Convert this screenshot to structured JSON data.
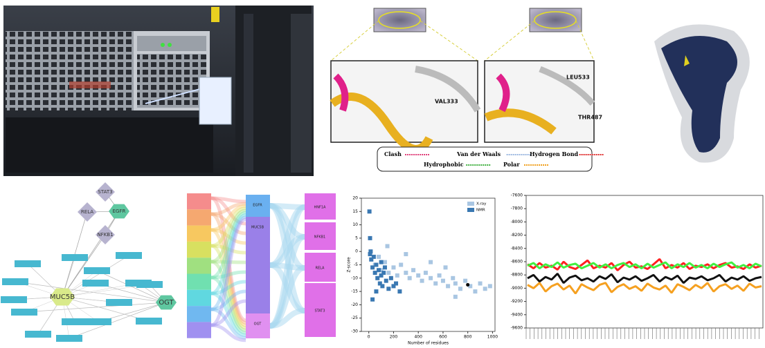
{
  "docking": {
    "residues": [
      "VAL333",
      "THR487",
      "LEU533"
    ],
    "legend": [
      {
        "label": "Clash",
        "color": "#e0407a"
      },
      {
        "label": "Van der Waals",
        "color": "#9ab6e0"
      },
      {
        "label": "Hydrogen Bond",
        "color": "#e03030"
      },
      {
        "label": "Hydrophobic",
        "color": "#40b040"
      },
      {
        "label": "Polar",
        "color": "#f0a020"
      }
    ]
  },
  "network": {
    "nodes": [
      "STAT3",
      "RELA",
      "EGFR",
      "NFKB1",
      "MUC5B",
      "OGT"
    ]
  },
  "sankey": {
    "targets": [
      "EGFR",
      "MUC5B",
      "OGT"
    ],
    "factors": [
      "HNF1A",
      "NFKB1",
      "RELA",
      "STAT3"
    ]
  },
  "chart_data": [
    {
      "type": "scatter",
      "xlabel": "Number of residues",
      "ylabel": "Z-score",
      "xlim": [
        -60,
        1020
      ],
      "ylim": [
        -30,
        20
      ],
      "xticks": [
        0,
        200,
        400,
        600,
        800,
        1000
      ],
      "yticks": [
        -30,
        -25,
        -20,
        -15,
        -10,
        -5,
        0,
        5,
        10,
        15,
        20
      ],
      "legend": "upper right",
      "series": [
        {
          "name": "X-ray",
          "color": "#a9c6e2",
          "x": [
            20,
            50,
            80,
            100,
            130,
            160,
            200,
            230,
            260,
            300,
            330,
            360,
            400,
            430,
            460,
            500,
            540,
            570,
            600,
            640,
            680,
            700,
            740,
            780,
            820,
            860,
            900,
            940,
            980,
            150,
            300,
            500,
            620,
            700
          ],
          "values": [
            -3,
            -5,
            -2,
            -7,
            -4,
            -8,
            -6,
            -9,
            -5,
            -8,
            -10,
            -7,
            -9,
            -11,
            -8,
            -10,
            -12,
            -9,
            -11,
            -13,
            -10,
            -12,
            -14,
            -11,
            -13,
            -15,
            -12,
            -14,
            -13,
            2,
            -1,
            -4,
            -6,
            -17
          ]
        },
        {
          "name": "NMR",
          "color": "#3a78b2",
          "x": [
            5,
            10,
            15,
            20,
            30,
            40,
            50,
            60,
            70,
            80,
            90,
            100,
            110,
            120,
            140,
            160,
            180,
            200,
            220,
            250,
            30,
            60,
            10,
            100,
            130
          ],
          "values": [
            15,
            5,
            0,
            -3,
            -6,
            -2,
            -8,
            -5,
            -10,
            -7,
            -12,
            -9,
            -13,
            -8,
            -11,
            -14,
            -10,
            -13,
            -12,
            -15,
            -18,
            -15,
            -1,
            -4,
            -6
          ]
        }
      ],
      "highlight": {
        "x": 800,
        "value": -12.5,
        "color": "#000000"
      }
    },
    {
      "type": "line",
      "ylim": [
        -9600,
        -7600
      ],
      "yticks": [
        -7600,
        -7800,
        -8000,
        -8200,
        -8400,
        -8600,
        -8800,
        -9000,
        -9200,
        -9400,
        -9600
      ],
      "series": [
        {
          "color": "#ff2020",
          "values": [
            -8640,
            -8700,
            -8620,
            -8690,
            -8660,
            -8720,
            -8600,
            -8680,
            -8710,
            -8650,
            -8580,
            -8700,
            -8660,
            -8690,
            -8620,
            -8730,
            -8650,
            -8600,
            -8690,
            -8670,
            -8710,
            -8640,
            -8560,
            -8700,
            -8650,
            -8690,
            -8620,
            -8710,
            -8660,
            -8680,
            -8640,
            -8700,
            -8650,
            -8620,
            -8690,
            -8670,
            -8710,
            -8640,
            -8690,
            -8660
          ]
        },
        {
          "color": "#40f040",
          "values": [
            -8660,
            -8620,
            -8700,
            -8640,
            -8680,
            -8610,
            -8690,
            -8650,
            -8630,
            -8700,
            -8660,
            -8620,
            -8690,
            -8640,
            -8700,
            -8650,
            -8620,
            -8680,
            -8640,
            -8700,
            -8630,
            -8690,
            -8650,
            -8610,
            -8700,
            -8640,
            -8680,
            -8620,
            -8690,
            -8650,
            -8700,
            -8630,
            -8680,
            -8640,
            -8610,
            -8690,
            -8650,
            -8700,
            -8630,
            -8670
          ]
        },
        {
          "color": "#111111",
          "values": [
            -8850,
            -8800,
            -8900,
            -8830,
            -8870,
            -8780,
            -8920,
            -8840,
            -8810,
            -8880,
            -8850,
            -8900,
            -8820,
            -8860,
            -8790,
            -8910,
            -8840,
            -8870,
            -8820,
            -8890,
            -8850,
            -8800,
            -8900,
            -8830,
            -8870,
            -8810,
            -8920,
            -8840,
            -8860,
            -8820,
            -8880,
            -8850,
            -8800,
            -8900,
            -8840,
            -8870,
            -8820,
            -8890,
            -8850,
            -8830
          ]
        },
        {
          "color": "#f5a020",
          "values": [
            -8950,
            -9000,
            -8920,
            -9050,
            -8970,
            -8930,
            -9020,
            -8960,
            -9080,
            -8940,
            -8990,
            -9030,
            -8950,
            -8920,
            -9060,
            -8980,
            -8940,
            -9010,
            -8970,
            -9040,
            -8930,
            -8990,
            -9020,
            -8960,
            -9070,
            -8940,
            -8980,
            -9030,
            -8950,
            -9000,
            -8920,
            -9050,
            -8970,
            -8940,
            -9010,
            -8960,
            -9040,
            -8930,
            -8990,
            -8970
          ]
        }
      ]
    }
  ]
}
